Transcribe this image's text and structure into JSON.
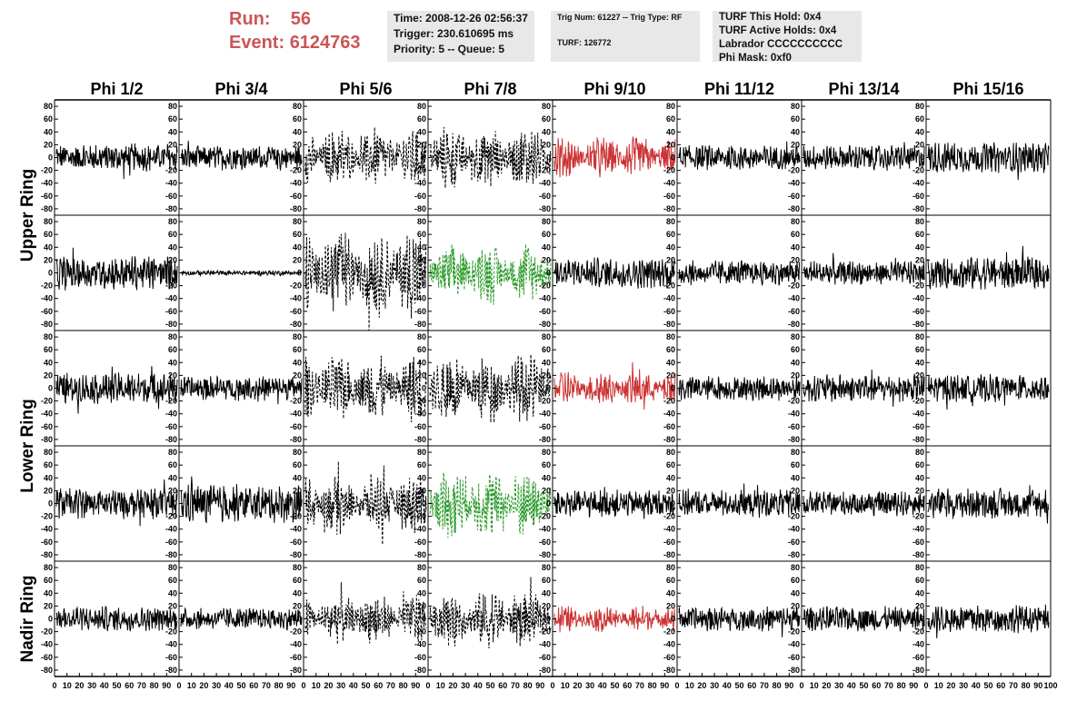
{
  "run": {
    "run_label": "Run:",
    "run_value": "56",
    "event_label": "Event:",
    "event_value": "6124763"
  },
  "info_panel_1": {
    "time": "Time: 2008-12-26 02:56:37",
    "trigger": "Trigger: 230.610695 ms",
    "priority": "Priority: 5 -- Queue: 5"
  },
  "info_panel_2": {
    "trig": "Trig Num: 61227 -- Trig Type: RF",
    "turf": "TURF: 126772"
  },
  "info_panel_3": {
    "hold": "TURF This Hold: 0x4",
    "active": "TURF Active Holds: 0x4",
    "labrador": "Labrador CCCCCCCCCC",
    "phi_mask": "Phi Mask: 0xf0"
  },
  "colors": {
    "normal": "#000000",
    "red": "#cc3333",
    "green": "#2a9a2a"
  },
  "chart_data": {
    "type": "line",
    "columns": [
      "Phi 1/2",
      "Phi 3/4",
      "Phi 5/6",
      "Phi 7/8",
      "Phi 9/10",
      "Phi 11/12",
      "Phi 13/14",
      "Phi 15/16"
    ],
    "rings": [
      "Upper Ring",
      "Lower Ring",
      "Nadir Ring"
    ],
    "row_ring": [
      0,
      0,
      1,
      1,
      2
    ],
    "ylim": [
      -90,
      90
    ],
    "xlim": [
      0,
      100
    ],
    "y_ticks": [
      -80,
      -60,
      -40,
      -20,
      0,
      20,
      40,
      60,
      80
    ],
    "x_ticks": [
      0,
      10,
      20,
      30,
      40,
      50,
      60,
      70,
      80,
      90,
      100
    ],
    "waveforms": [
      [
        {
          "amp": 18,
          "style": "solid",
          "color": "normal"
        },
        {
          "amp": 16,
          "style": "solid",
          "color": "normal"
        },
        {
          "amp": 40,
          "style": "dashed",
          "color": "normal",
          "envelope": "burst"
        },
        {
          "amp": 45,
          "style": "dashed",
          "color": "normal",
          "envelope": "burst"
        },
        {
          "amp": 28,
          "style": "solid",
          "color": "red",
          "envelope": "burst"
        },
        {
          "amp": 16,
          "style": "solid",
          "color": "normal"
        },
        {
          "amp": 16,
          "style": "solid",
          "color": "normal"
        },
        {
          "amp": 20,
          "style": "solid",
          "color": "normal"
        }
      ],
      [
        {
          "amp": 22,
          "style": "solid",
          "color": "normal"
        },
        {
          "amp": 3,
          "style": "solid",
          "color": "normal"
        },
        {
          "amp": 60,
          "style": "dashed",
          "color": "normal",
          "envelope": "burst"
        },
        {
          "amp": 40,
          "style": "dashed",
          "color": "green",
          "envelope": "burst"
        },
        {
          "amp": 20,
          "style": "solid",
          "color": "normal"
        },
        {
          "amp": 16,
          "style": "solid",
          "color": "normal"
        },
        {
          "amp": 16,
          "style": "solid",
          "color": "normal"
        },
        {
          "amp": 22,
          "style": "solid",
          "color": "normal"
        }
      ],
      [
        {
          "amp": 20,
          "style": "solid",
          "color": "normal"
        },
        {
          "amp": 16,
          "style": "solid",
          "color": "normal"
        },
        {
          "amp": 45,
          "style": "dashed",
          "color": "normal",
          "envelope": "burst"
        },
        {
          "amp": 50,
          "style": "dashed",
          "color": "normal",
          "envelope": "burst"
        },
        {
          "amp": 25,
          "style": "solid",
          "color": "red",
          "envelope": "burst"
        },
        {
          "amp": 16,
          "style": "solid",
          "color": "normal"
        },
        {
          "amp": 18,
          "style": "solid",
          "color": "normal"
        },
        {
          "amp": 18,
          "style": "solid",
          "color": "normal"
        }
      ],
      [
        {
          "amp": 20,
          "style": "solid",
          "color": "normal"
        },
        {
          "amp": 25,
          "style": "solid",
          "color": "normal"
        },
        {
          "amp": 40,
          "style": "dashed",
          "color": "normal",
          "envelope": "burst"
        },
        {
          "amp": 50,
          "style": "dashed",
          "color": "green",
          "envelope": "burst"
        },
        {
          "amp": 18,
          "style": "solid",
          "color": "normal"
        },
        {
          "amp": 18,
          "style": "solid",
          "color": "normal"
        },
        {
          "amp": 16,
          "style": "solid",
          "color": "normal"
        },
        {
          "amp": 20,
          "style": "solid",
          "color": "normal"
        }
      ],
      [
        {
          "amp": 16,
          "style": "solid",
          "color": "normal"
        },
        {
          "amp": 14,
          "style": "solid",
          "color": "normal"
        },
        {
          "amp": 35,
          "style": "dashed",
          "color": "normal",
          "envelope": "burst"
        },
        {
          "amp": 40,
          "style": "dashed",
          "color": "normal",
          "envelope": "burst"
        },
        {
          "amp": 18,
          "style": "solid",
          "color": "red",
          "envelope": "burst"
        },
        {
          "amp": 16,
          "style": "solid",
          "color": "normal"
        },
        {
          "amp": 16,
          "style": "solid",
          "color": "normal"
        },
        {
          "amp": 18,
          "style": "solid",
          "color": "normal"
        }
      ]
    ]
  }
}
